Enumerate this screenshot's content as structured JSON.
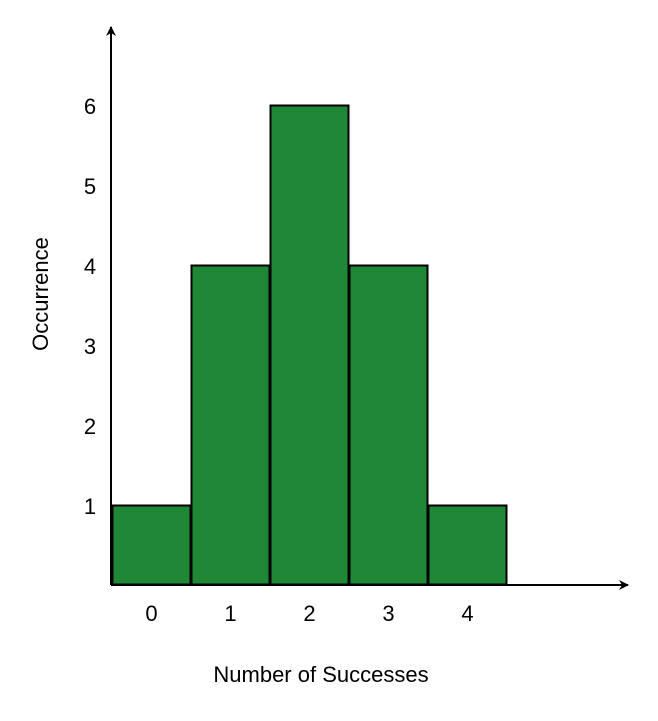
{
  "chart_data": {
    "type": "bar",
    "categories": [
      "0",
      "1",
      "2",
      "3",
      "4"
    ],
    "values": [
      1,
      4,
      6,
      4,
      1
    ],
    "title": "",
    "xlabel": "Number of Successes",
    "ylabel": "Occurrence",
    "ylim": [
      0,
      6
    ],
    "yticks": [
      "1",
      "2",
      "3",
      "4",
      "5",
      "6"
    ],
    "grid": false,
    "bar_color": "#1f8735",
    "bar_edge_color": "#000000"
  }
}
